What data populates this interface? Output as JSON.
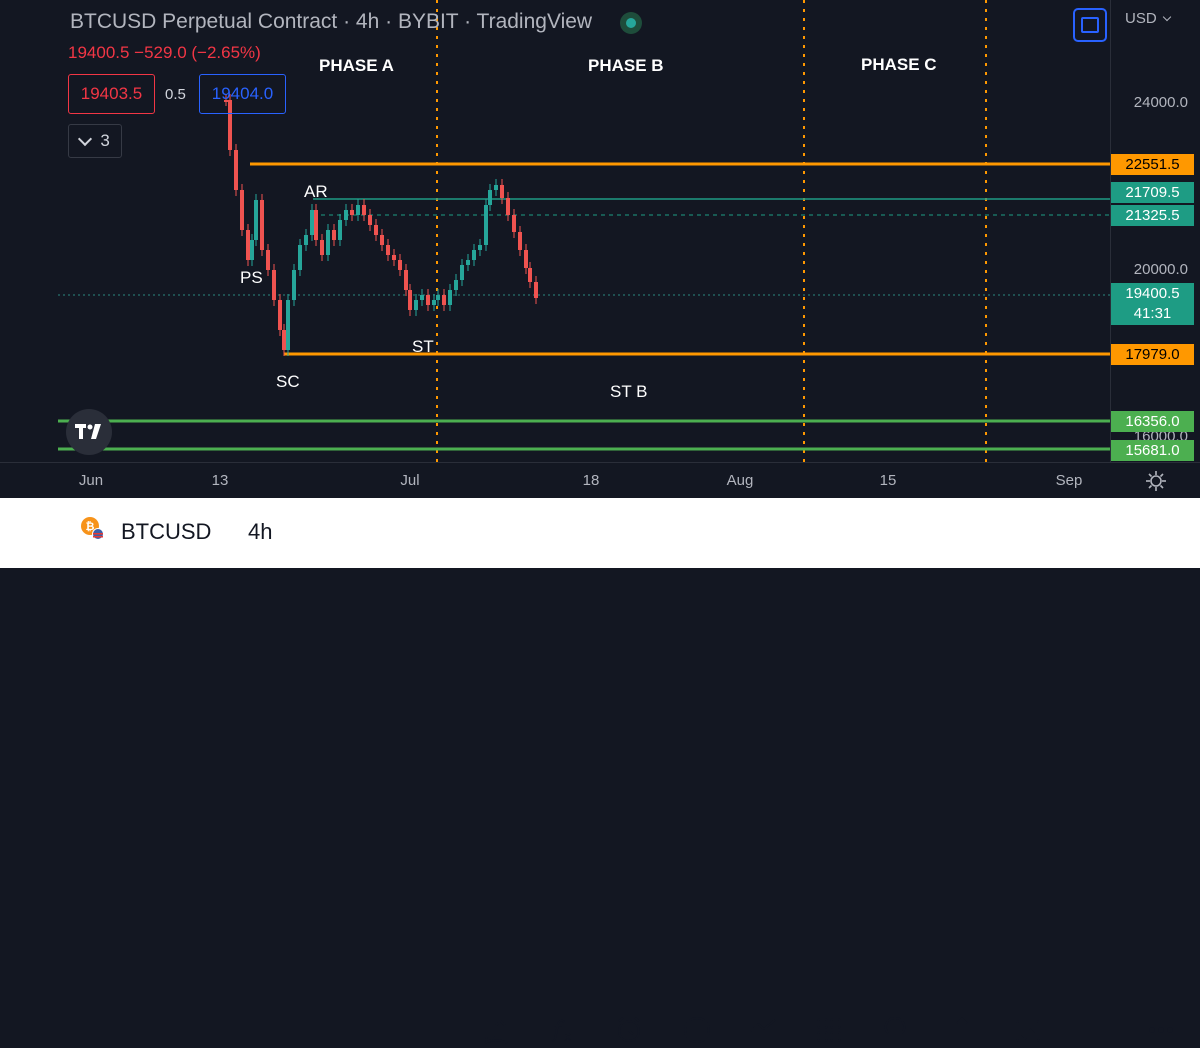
{
  "header": {
    "title": "BTCUSD Perpetual Contract · 4h · BYBIT · TradingView",
    "quote": "19400.5  −529.0 (−2.65%)",
    "sell_price": "19403.5",
    "spread": "0.5",
    "buy_price": "19404.0",
    "indicators_count": "3"
  },
  "phases": [
    "PHASE A",
    "PHASE B",
    "PHASE C"
  ],
  "annotations": {
    "ps": "PS",
    "sc": "SC",
    "ar": "AR",
    "st": "ST",
    "st_b": "ST B"
  },
  "price_scale": {
    "currency": "USD",
    "ticks": [
      "24000.0",
      "20000.0",
      "16000.0"
    ],
    "badges": [
      {
        "label": "22551.5",
        "bg": "#ff9800",
        "fg": "#000000"
      },
      {
        "label": "21709.5",
        "bg": "#1e9c84",
        "fg": "#ffffff"
      },
      {
        "label": "21325.5",
        "bg": "#1e9c84",
        "fg": "#ffffff"
      },
      {
        "label": "17979.0",
        "bg": "#ff9800",
        "fg": "#000000"
      },
      {
        "label": "16356.0",
        "bg": "#4caf50",
        "fg": "#ffffff"
      },
      {
        "label": "15681.0",
        "bg": "#4caf50",
        "fg": "#ffffff"
      }
    ],
    "last_price": "19400.5",
    "countdown": "41:31"
  },
  "time_scale": [
    "Jun",
    "13",
    "Jul",
    "18",
    "Aug",
    "15",
    "Sep"
  ],
  "bottom_bar": {
    "symbol": "BTCUSD",
    "interval": "4h"
  },
  "colors": {
    "background": "#131722",
    "up": "#26a69a",
    "down": "#ef5350",
    "resistance": "#ff9800",
    "support": "#4caf50",
    "ar_line": "#1e9c84",
    "phase_divider": "#ff9800"
  }
}
